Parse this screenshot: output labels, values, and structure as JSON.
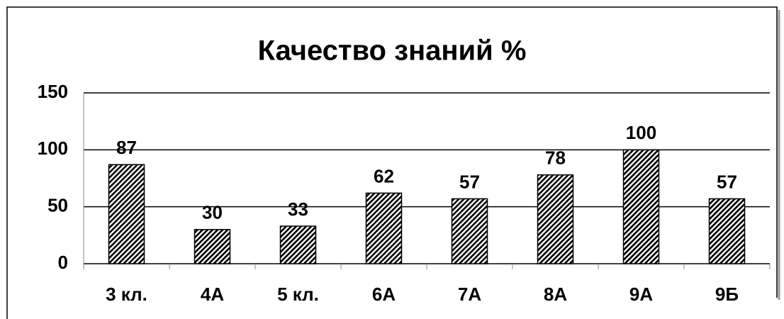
{
  "chart_data": {
    "type": "bar",
    "title": "Качество знаний  %",
    "categories": [
      "3 кл.",
      "4А",
      "5 кл.",
      "6А",
      "7А",
      "8А",
      "9А",
      "9Б"
    ],
    "values": [
      87,
      30,
      33,
      62,
      57,
      78,
      100,
      57
    ],
    "color": "#000000",
    "ylim": [
      0,
      150
    ],
    "yticks": [
      0,
      50,
      100,
      150
    ],
    "grid": true
  }
}
